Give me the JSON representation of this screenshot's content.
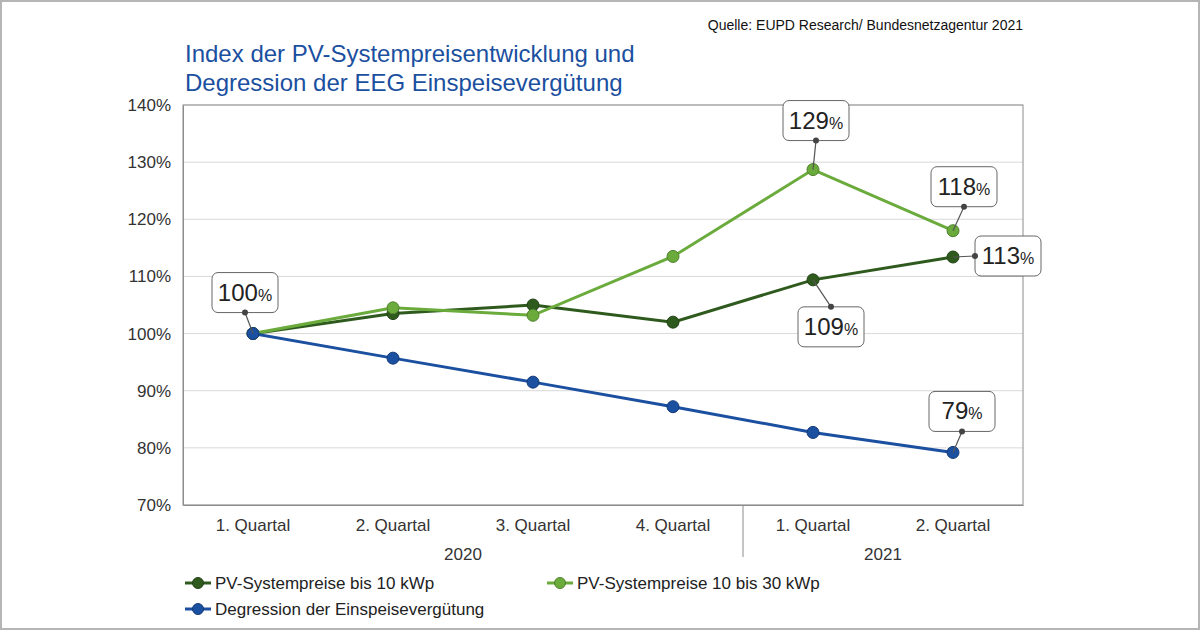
{
  "chart_data": {
    "type": "line",
    "title": "Index der PV-Systempreisentwicklung und\nDegression der EEG Einspeisevergütung",
    "source": "Quelle: EUPD Research/ Bundesnetzagentur 2021",
    "categories": [
      "1. Quartal",
      "2. Quartal",
      "3. Quartal",
      "4. Quartal",
      "1. Quartal",
      "2. Quartal"
    ],
    "category_groups": [
      {
        "label": "2020",
        "categories": [
          0,
          1,
          2,
          3
        ]
      },
      {
        "label": "2021",
        "categories": [
          4,
          5
        ]
      }
    ],
    "series": [
      {
        "name": "PV-Systempreise bis 10 kWp",
        "color": "#2f5a1e",
        "marker": "circle",
        "values": [
          100,
          103.5,
          105,
          102,
          109.4,
          113.4
        ],
        "value_labels": [
          "100%",
          null,
          null,
          null,
          "109%",
          "113%"
        ]
      },
      {
        "name": "PV-Systempreise 10 bis 30 kWp",
        "color": "#6aab3c",
        "marker": "circle",
        "values": [
          100,
          104.5,
          103.2,
          113.5,
          128.7,
          118
        ],
        "value_labels": [
          null,
          null,
          null,
          null,
          "129%",
          "118%"
        ]
      },
      {
        "name": "Degression der Einspeisevergütung",
        "color": "#1b4fa0",
        "marker": "circle",
        "values": [
          100,
          95.7,
          91.5,
          87.2,
          82.7,
          79.2
        ],
        "value_labels": [
          null,
          null,
          null,
          null,
          null,
          "79%"
        ]
      }
    ],
    "ylim": [
      70,
      140
    ],
    "yticks": [
      {
        "value": 70,
        "label": "70%"
      },
      {
        "value": 80,
        "label": "80%"
      },
      {
        "value": 90,
        "label": "90%"
      },
      {
        "value": 100,
        "label": "100%"
      },
      {
        "value": 110,
        "label": "110%"
      },
      {
        "value": 120,
        "label": "120%"
      },
      {
        "value": 130,
        "label": "130%"
      },
      {
        "value": 140,
        "label": "140%"
      }
    ],
    "grid": true,
    "legend": "bottom",
    "data_labels": true
  }
}
